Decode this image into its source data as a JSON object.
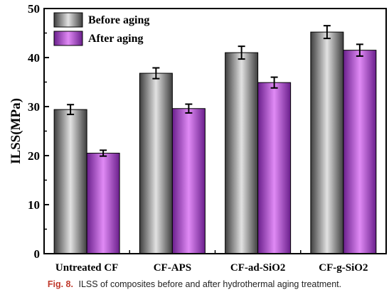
{
  "chart_data": {
    "type": "bar",
    "title": "",
    "xlabel": "",
    "ylabel": "ILSS(MPa)",
    "ylim": [
      0,
      50
    ],
    "yticks": [
      0,
      10,
      20,
      30,
      40,
      50
    ],
    "categories": [
      "Untreated CF",
      "CF-APS",
      "CF-ad-SiO2",
      "CF-g-SiO2"
    ],
    "series": [
      {
        "name": "Before aging",
        "values": [
          29.4,
          36.8,
          41.0,
          45.2
        ],
        "errors": [
          1.0,
          1.1,
          1.3,
          1.3
        ],
        "color": "#8a8a8a"
      },
      {
        "name": "After aging",
        "values": [
          20.5,
          29.6,
          34.9,
          41.5
        ],
        "errors": [
          0.6,
          0.9,
          1.1,
          1.2
        ],
        "color": "#c34dea"
      }
    ],
    "legend_position": "top-left",
    "error_bars": true
  },
  "caption": {
    "label": "Fig. 8.",
    "text": "ILSS of composites before and after hydrothermal aging treatment."
  }
}
